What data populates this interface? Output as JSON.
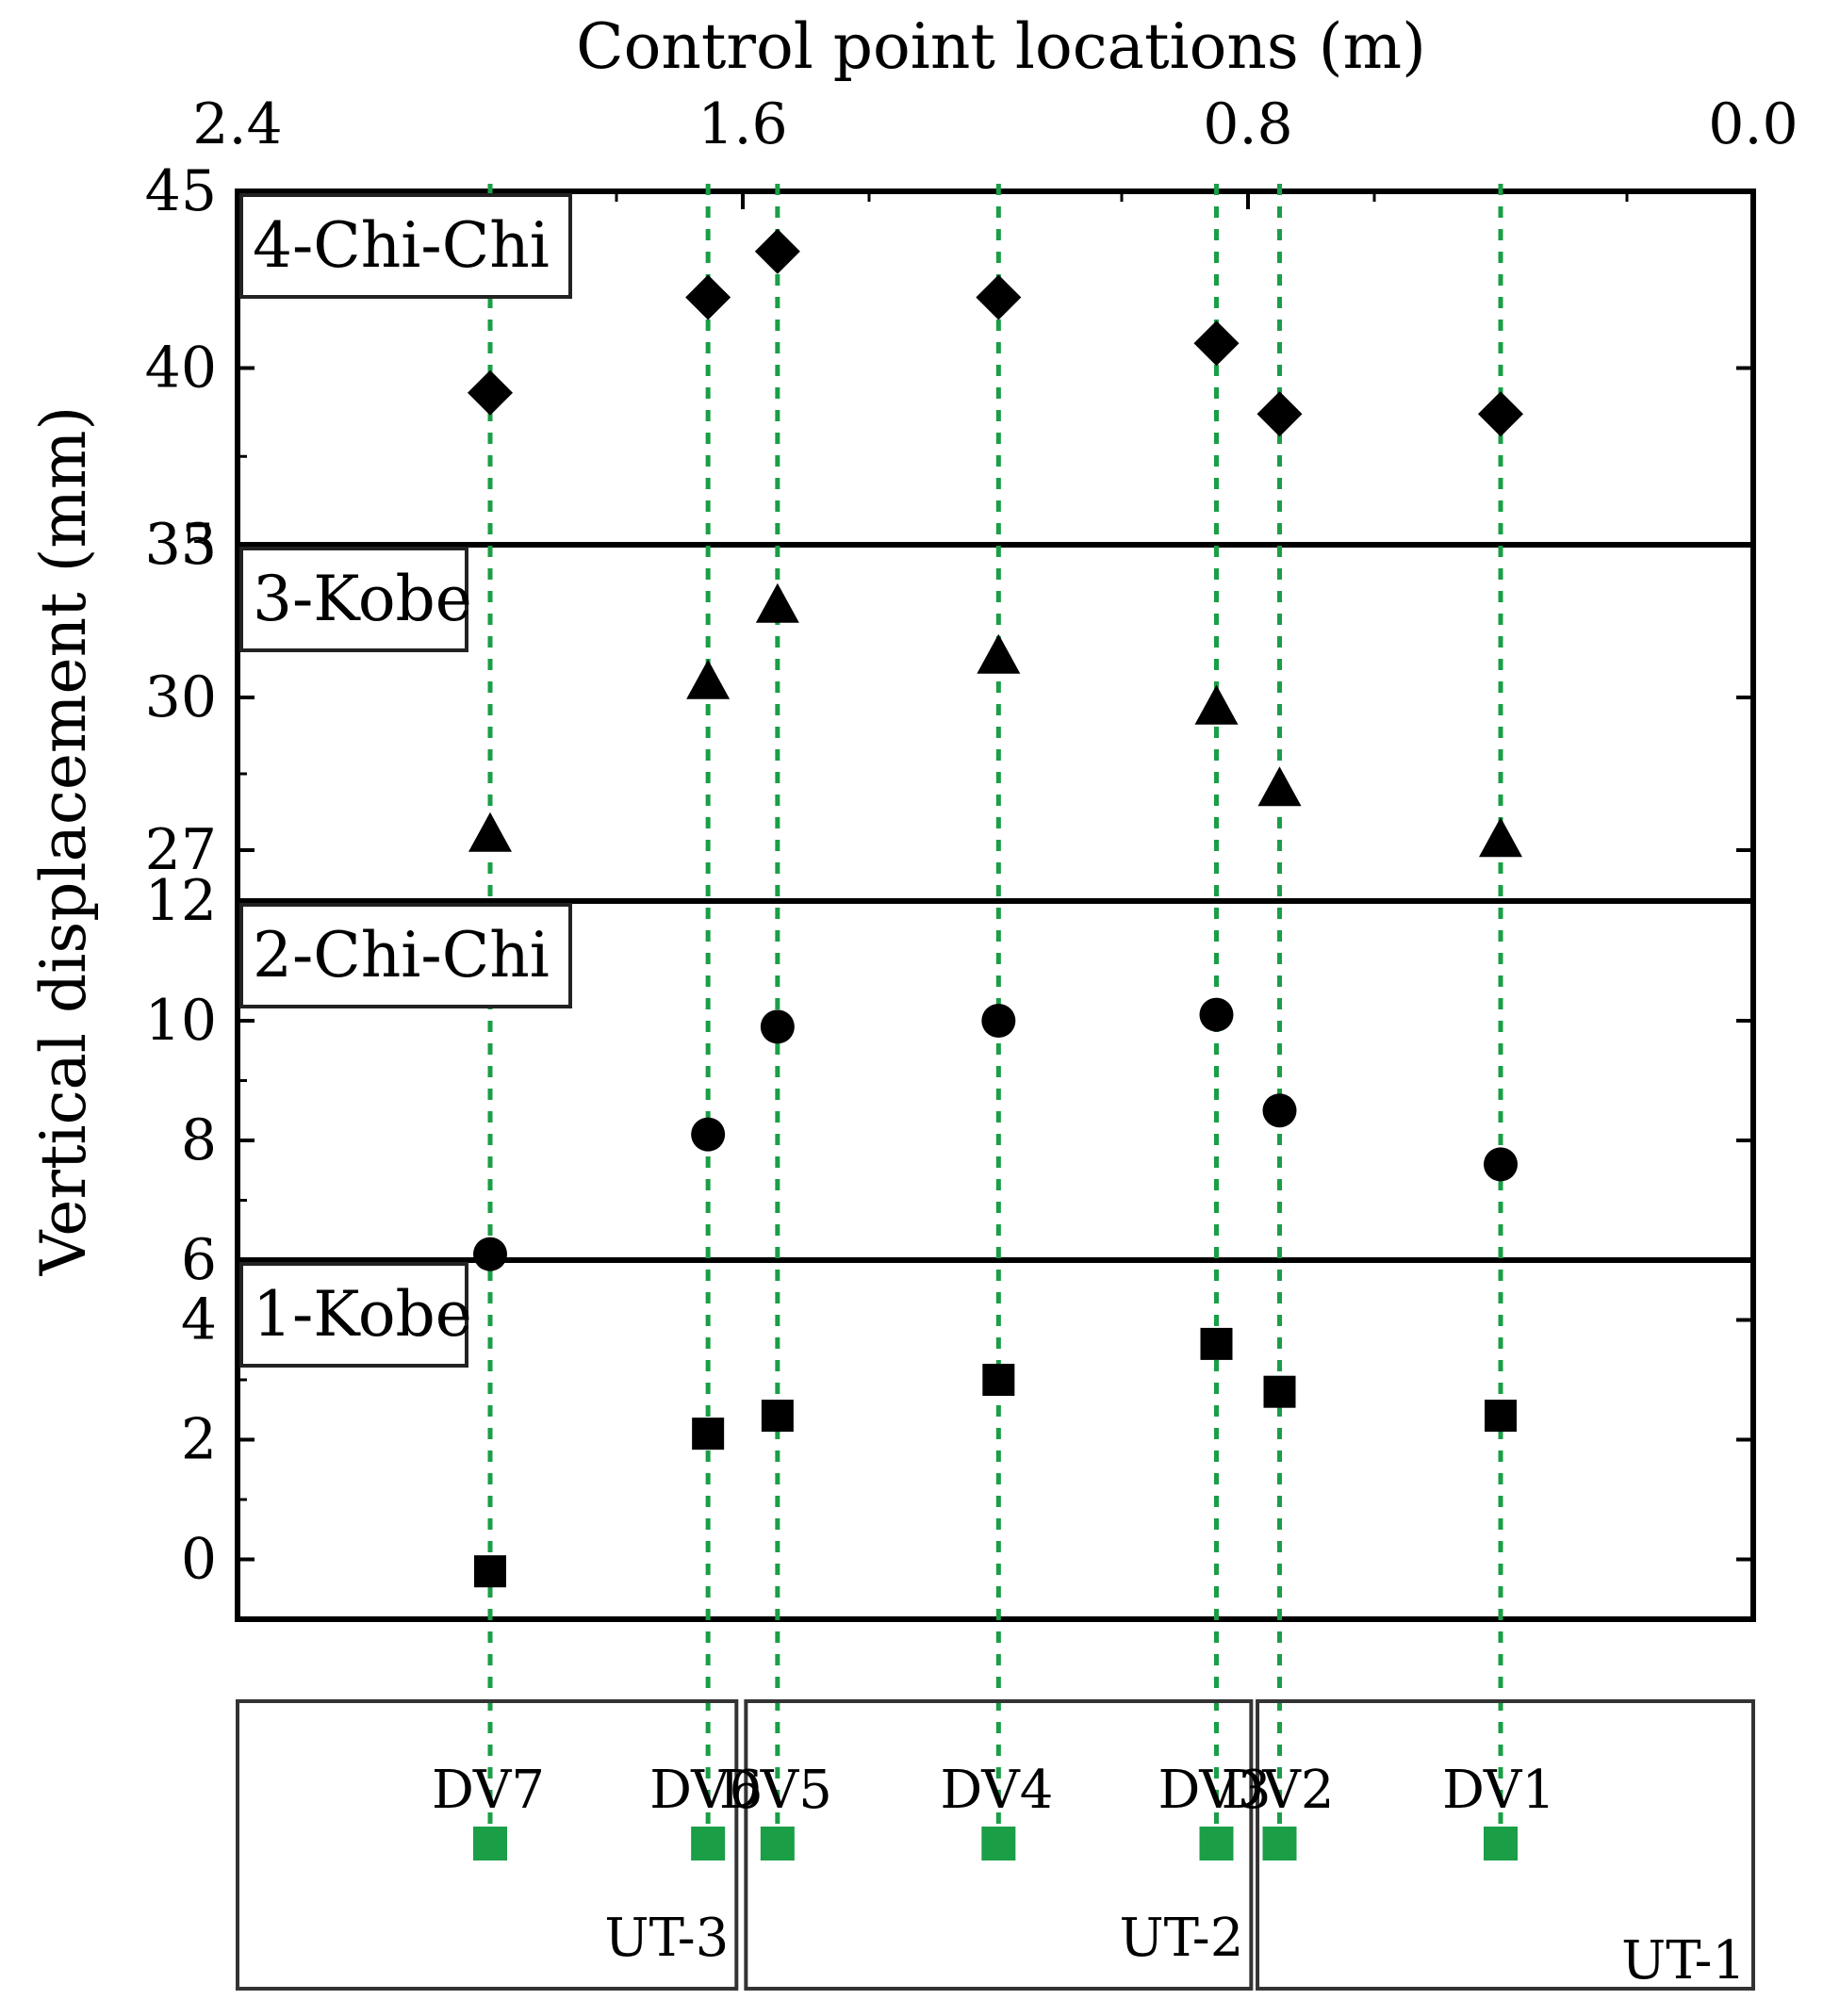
{
  "chart_data": {
    "type": "scatter",
    "layout": "stacked-panels",
    "x_axis": {
      "title": "Control point locations (m)",
      "position": "top",
      "reversed": true,
      "range": [
        2.4,
        0.0
      ],
      "ticks": [
        2.4,
        1.6,
        0.8,
        0.0
      ],
      "tick_labels": [
        "2.4",
        "1.6",
        "0.8",
        "0.0"
      ]
    },
    "y_axis_title": "Vertical displacement (mm)",
    "control_points": [
      {
        "name": "DV7",
        "x": 2.0
      },
      {
        "name": "DV6",
        "x": 1.655
      },
      {
        "name": "DV5",
        "x": 1.545
      },
      {
        "name": "DV4",
        "x": 1.195
      },
      {
        "name": "DV3",
        "x": 0.85
      },
      {
        "name": "DV2",
        "x": 0.75
      },
      {
        "name": "DV1",
        "x": 0.4
      }
    ],
    "panels": [
      {
        "label": "4-Chi-Chi",
        "marker": "diamond",
        "ylim": [
          35,
          45
        ],
        "ticks": [
          35,
          40,
          45
        ],
        "tick_labels": [
          "35",
          "40",
          "45"
        ],
        "values": [
          39.3,
          42.0,
          43.3,
          42.0,
          40.7,
          38.7,
          38.7
        ]
      },
      {
        "label": "3-Kobe",
        "marker": "triangle",
        "ylim": [
          26,
          33
        ],
        "ticks": [
          27,
          30,
          33
        ],
        "tick_labels": [
          "27",
          "30",
          "33"
        ],
        "values": [
          27.3,
          30.3,
          31.8,
          30.8,
          29.8,
          28.2,
          27.2
        ]
      },
      {
        "label": "2-Chi-Chi",
        "marker": "circle",
        "ylim": [
          6,
          12
        ],
        "ticks": [
          6,
          8,
          10,
          12
        ],
        "tick_labels": [
          "6",
          "8",
          "10",
          "12"
        ],
        "values": [
          6.1,
          8.1,
          9.9,
          10.0,
          10.1,
          8.5,
          7.6
        ]
      },
      {
        "label": "1-Kobe",
        "marker": "square",
        "ylim": [
          -1,
          5
        ],
        "ticks": [
          0,
          2,
          4
        ],
        "tick_labels": [
          "0",
          "2",
          "4"
        ],
        "values": [
          -0.2,
          2.1,
          2.4,
          3.0,
          3.6,
          2.8,
          2.4
        ]
      }
    ],
    "sensor_layout": {
      "units": [
        {
          "name": "UT-3",
          "x_from": 2.4,
          "x_to": 1.61
        },
        {
          "name": "UT-2",
          "x_from": 1.595,
          "x_to": 0.795
        },
        {
          "name": "UT-1",
          "x_from": 0.785,
          "x_to": 0.0
        }
      ]
    },
    "colors": {
      "marker": "#000000",
      "guide_line": "#1a9e46",
      "sensor": "#1a9e46",
      "frame": "#000000",
      "unit_box": "#333333"
    }
  }
}
